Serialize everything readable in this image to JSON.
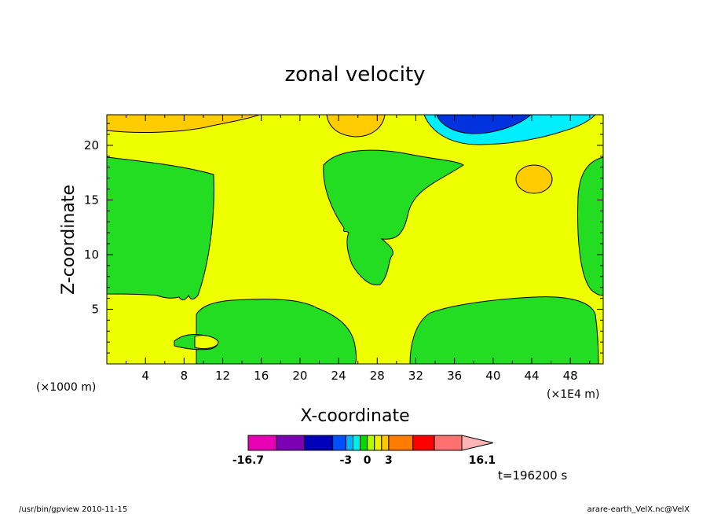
{
  "chart_data": {
    "type": "contour",
    "title": "zonal velocity",
    "xlabel": "X-coordinate",
    "ylabel": "Z-coordinate",
    "x_scale_note": "(×1000 m)",
    "x_unit_note": "(×1E4 m)",
    "xlim": [
      0,
      51.4
    ],
    "ylim": [
      0,
      22.8
    ],
    "x_ticks": [
      4,
      8,
      12,
      16,
      20,
      24,
      28,
      32,
      36,
      40,
      44,
      48
    ],
    "y_ticks": [
      5,
      10,
      15,
      20
    ],
    "colorbar": {
      "levels": [
        -16.7,
        -12.75,
        -8.8,
        -4.85,
        -3,
        -2,
        -1,
        0,
        1,
        2,
        3,
        6.4,
        9.4,
        13.25,
        16.1
      ],
      "colors": [
        "#e800b4",
        "#7c00b4",
        "#0000b8",
        "#0050ff",
        "#00b4ff",
        "#00f0e8",
        "#00dc00",
        "#b4ff00",
        "#f0f000",
        "#ffc800",
        "#ff7c00",
        "#ff0000",
        "#ff7070",
        "#ffb4b4"
      ],
      "labels": [
        "-16.7",
        "-3",
        "0",
        "3",
        "16.1"
      ]
    },
    "field_colors": {
      "green": "#22dd22",
      "yellow": "#eeff00",
      "orange": "#ffcc00",
      "cyan": "#00eeff",
      "blue": "#0033dd",
      "darkblue": "#0000aa"
    }
  },
  "annotations": {
    "time_label": "t=196200 s",
    "footer_left": "/usr/bin/gpview  2010-11-15",
    "footer_right": "arare-earth_VelX.nc@VelX"
  }
}
